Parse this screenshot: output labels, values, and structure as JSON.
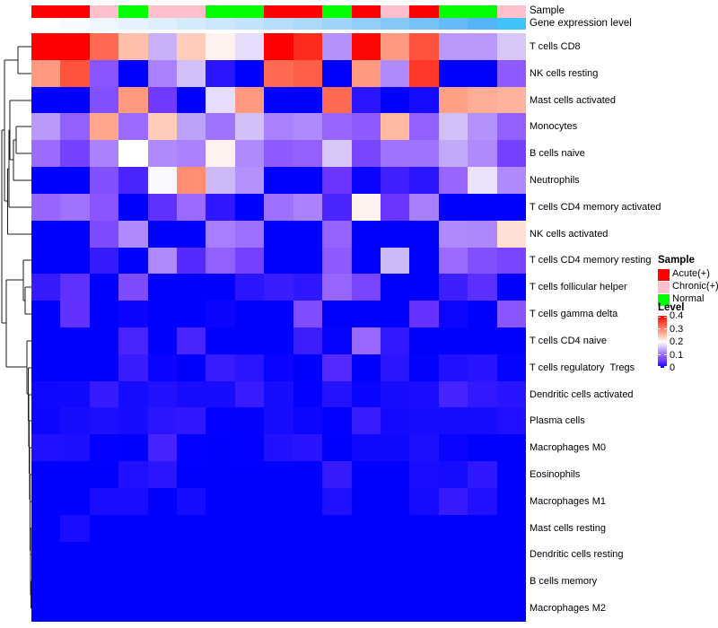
{
  "annotations": {
    "sample_label": "Sample",
    "expression_label": "Gene expression level",
    "sample_by_column": [
      "Acute(+)",
      "Acute(+)",
      "Chronic(+)",
      "Normal",
      "Chronic(+)",
      "Chronic(+)",
      "Normal",
      "Normal",
      "Acute(+)",
      "Acute(+)",
      "Normal",
      "Acute(+)",
      "Chronic(+)",
      "Acute(+)",
      "Normal",
      "Normal",
      "Chronic(+)"
    ],
    "sample_colors": {
      "Acute(+)": "#FF0000",
      "Chronic(+)": "#FFC0CB",
      "Normal": "#00FF00"
    },
    "expression_colors_by_column": [
      "#FFFFFF",
      "#F7FBFF",
      "#EFF7FE",
      "#E6F3FE",
      "#DDEFFD",
      "#D4EBFC",
      "#CBE7FC",
      "#C1E3FB",
      "#B6DEFA",
      "#ABD9FA",
      "#9FD4F9",
      "#92CEF8",
      "#85C8F8",
      "#76C2F7",
      "#66BBF6",
      "#55B4F5",
      "#40C4F8"
    ]
  },
  "chart_data": {
    "type": "heatmap",
    "title": "",
    "n_columns": 17,
    "column_labels_shown": false,
    "rows": [
      "T cells CD8",
      "NK cells resting",
      "Mast cells activated",
      "Monocytes",
      "B cells naive",
      "Neutrophils",
      "T cells CD4 memory activated",
      "NK cells activated",
      "T cells CD4 memory resting",
      "T cells follicular helper",
      "T cells gamma delta",
      "T cells CD4 naive",
      "T cells regulatory  Tregs",
      "Dendritic cells activated",
      "Plasma cells",
      "Macrophages M0",
      "Eosinophils",
      "Macrophages M1",
      "Mast cells resting",
      "Dendritic cells resting",
      "B cells memory",
      "Macrophages M2"
    ],
    "values": [
      [
        0.4,
        0.4,
        0.32,
        0.25,
        0.145,
        0.24,
        0.21,
        0.175,
        0.4,
        0.37,
        0.125,
        0.395,
        0.28,
        0.34,
        0.13,
        0.13,
        0.16
      ],
      [
        0.28,
        0.34,
        0.08,
        0.0,
        0.115,
        0.155,
        0.02,
        0.0,
        0.32,
        0.33,
        0.0,
        0.28,
        0.12,
        0.36,
        0.0,
        0.0,
        0.085
      ],
      [
        0.0,
        0.0,
        0.075,
        0.28,
        0.055,
        0.0,
        0.175,
        0.28,
        0.0,
        0.0,
        0.32,
        0.02,
        0.0,
        0.01,
        0.275,
        0.265,
        0.26
      ],
      [
        0.13,
        0.09,
        0.27,
        0.1,
        0.24,
        0.135,
        0.105,
        0.155,
        0.115,
        0.12,
        0.095,
        0.085,
        0.255,
        0.09,
        0.155,
        0.125,
        0.09
      ],
      [
        0.1,
        0.06,
        0.115,
        0.2,
        0.12,
        0.115,
        0.21,
        0.12,
        0.085,
        0.09,
        0.16,
        0.065,
        0.105,
        0.105,
        0.14,
        0.12,
        0.06
      ],
      [
        0.0,
        0.0,
        0.075,
        0.035,
        0.195,
        0.29,
        0.15,
        0.125,
        0.0,
        0.0,
        0.05,
        0.005,
        0.03,
        0.02,
        0.095,
        0.18,
        0.12
      ],
      [
        0.095,
        0.105,
        0.08,
        0.0,
        0.045,
        0.1,
        0.022,
        0.0,
        0.103,
        0.115,
        0.035,
        0.21,
        0.05,
        0.113,
        0.0,
        0.0,
        0.0
      ],
      [
        0.0,
        0.0,
        0.07,
        0.12,
        0.0,
        0.0,
        0.112,
        0.103,
        0.0,
        0.0,
        0.093,
        0.0,
        0.0,
        0.0,
        0.12,
        0.118,
        0.225
      ],
      [
        0.0,
        0.0,
        0.025,
        0.0,
        0.12,
        0.04,
        0.09,
        0.06,
        0.0,
        0.0,
        0.085,
        0.0,
        0.15,
        0.0,
        0.1,
        0.075,
        0.065
      ],
      [
        0.025,
        0.045,
        0.0,
        0.07,
        0.0,
        0.0,
        0.0,
        0.02,
        0.027,
        0.022,
        0.095,
        0.065,
        0.0,
        0.0,
        0.028,
        0.043,
        0.0
      ],
      [
        0.0,
        0.046,
        0.0,
        0.005,
        0.0,
        0.0,
        0.005,
        0.0,
        0.0,
        0.073,
        0.0,
        0.0,
        0.0,
        0.047,
        0.006,
        0.0,
        0.08
      ],
      [
        0.0,
        0.0,
        0.0,
        0.034,
        0.0,
        0.035,
        0.0,
        0.0,
        0.0,
        0.028,
        0.003,
        0.097,
        0.023,
        0.0,
        0.0,
        0.0,
        0.0
      ],
      [
        0.0,
        0.0,
        0.0,
        0.026,
        0.004,
        0.0,
        0.026,
        0.02,
        0.004,
        0.0,
        0.04,
        0.0,
        0.02,
        0.002,
        0.015,
        0.019,
        0.003
      ],
      [
        0.007,
        0.008,
        0.025,
        0.01,
        0.016,
        0.011,
        0.011,
        0.026,
        0.011,
        0.001,
        0.017,
        0.004,
        0.011,
        0.012,
        0.033,
        0.023,
        0.019
      ],
      [
        0.006,
        0.011,
        0.014,
        0.011,
        0.02,
        0.022,
        0.001,
        0.002,
        0.011,
        0.006,
        0.001,
        0.027,
        0.009,
        0.011,
        0.01,
        0.011,
        0.015
      ],
      [
        0.015,
        0.014,
        0.001,
        0.0,
        0.033,
        0.001,
        0.0,
        0.001,
        0.016,
        0.019,
        0.0,
        0.008,
        0.008,
        0.014,
        0.004,
        0.0,
        0.0
      ],
      [
        0.0,
        0.0,
        0.0,
        0.015,
        0.02,
        0.0,
        0.0,
        0.0,
        0.0,
        0.0,
        0.025,
        0.0,
        0.0,
        0.012,
        0.01,
        0.022,
        0.0
      ],
      [
        0.0,
        0.0,
        0.012,
        0.012,
        0.0,
        0.01,
        0.0,
        0.0,
        0.0,
        0.0,
        0.015,
        0.0,
        0.0,
        0.01,
        0.025,
        0.015,
        0.0
      ],
      [
        0.0,
        0.012,
        0.0,
        0.0,
        0.0,
        0.0,
        0.0,
        0.0,
        0.0,
        0.0,
        0.0,
        0.0,
        0.0,
        0.0,
        0.0,
        0.0,
        0.0
      ],
      [
        0.0,
        0.0,
        0.0,
        0.0,
        0.0,
        0.0,
        0.0,
        0.0,
        0.0,
        0.0,
        0.0,
        0.0,
        0.0,
        0.0,
        0.0,
        0.0,
        0.0
      ],
      [
        0.0,
        0.0,
        0.0,
        0.0,
        0.0,
        0.0,
        0.0,
        0.0,
        0.0,
        0.0,
        0.0,
        0.0,
        0.0,
        0.0,
        0.0,
        0.0,
        0.0
      ],
      [
        0.0,
        0.0,
        0.0,
        0.0,
        0.0,
        0.0,
        0.0,
        0.0,
        0.0,
        0.0,
        0.0,
        0.0,
        0.0,
        0.0,
        0.0,
        0.0,
        0.0
      ]
    ],
    "colormap_anchors": [
      [
        0,
        "#0000FF"
      ],
      [
        0.05,
        "#6B35FF"
      ],
      [
        0.1,
        "#9B6BFF"
      ],
      [
        0.15,
        "#CDB9F8"
      ],
      [
        0.2,
        "#FFFFFF"
      ],
      [
        0.25,
        "#FFBFA9"
      ],
      [
        0.3,
        "#FF8266"
      ],
      [
        0.35,
        "#FF4733"
      ],
      [
        0.4,
        "#FF0000"
      ]
    ],
    "value_range": [
      0,
      0.4
    ],
    "row_dendrogram_segments": [
      [
        20,
        52,
        35,
        52
      ],
      [
        20,
        82,
        35,
        82
      ],
      [
        20,
        52,
        20,
        82
      ],
      [
        5,
        67,
        20,
        67
      ],
      [
        18,
        141,
        35,
        141
      ],
      [
        18,
        171,
        35,
        171
      ],
      [
        18,
        141,
        18,
        171
      ],
      [
        15,
        156,
        18,
        156
      ],
      [
        15,
        201,
        35,
        201
      ],
      [
        15,
        156,
        15,
        201
      ],
      [
        11,
        112,
        35,
        112
      ],
      [
        11,
        178,
        15,
        178
      ],
      [
        11,
        112,
        11,
        178
      ],
      [
        10,
        145,
        11,
        145
      ],
      [
        10,
        231,
        35,
        231
      ],
      [
        10,
        145,
        10,
        231
      ],
      [
        8.5,
        188,
        10,
        188
      ],
      [
        8.5,
        261,
        35,
        261
      ],
      [
        8.5,
        188,
        8.5,
        261
      ],
      [
        5,
        67,
        5,
        224
      ],
      [
        5,
        224,
        8.5,
        224
      ],
      [
        28,
        320,
        35,
        320
      ],
      [
        28,
        350,
        35,
        350
      ],
      [
        28,
        320,
        28,
        350
      ],
      [
        26,
        290,
        35,
        290
      ],
      [
        26,
        335,
        28,
        335
      ],
      [
        26,
        290,
        26,
        335
      ],
      [
        34.5,
        648,
        35,
        648
      ],
      [
        34.5,
        678,
        35,
        678
      ],
      [
        34.5,
        648,
        34.5,
        678
      ],
      [
        34.2,
        618,
        35,
        618
      ],
      [
        34.2,
        663,
        34.5,
        663
      ],
      [
        34.2,
        618,
        34.2,
        663
      ],
      [
        33.9,
        589,
        35,
        589
      ],
      [
        33.9,
        640,
        34.2,
        640
      ],
      [
        33.9,
        589,
        33.9,
        640
      ],
      [
        33.6,
        559,
        35,
        559
      ],
      [
        33.6,
        614,
        33.9,
        614
      ],
      [
        33.6,
        559,
        33.6,
        614
      ],
      [
        33.3,
        529,
        35,
        529
      ],
      [
        33.3,
        586,
        33.6,
        586
      ],
      [
        33.3,
        529,
        33.3,
        586
      ],
      [
        33,
        499,
        35,
        499
      ],
      [
        33,
        557,
        33.3,
        557
      ],
      [
        33,
        499,
        33,
        557
      ],
      [
        32.5,
        469,
        35,
        469
      ],
      [
        32.5,
        528,
        33,
        528
      ],
      [
        32.5,
        469,
        32.5,
        528
      ],
      [
        32,
        440,
        35,
        440
      ],
      [
        32,
        498,
        32.5,
        498
      ],
      [
        32,
        440,
        32,
        498
      ],
      [
        31.5,
        410,
        35,
        410
      ],
      [
        31.5,
        469,
        32,
        469
      ],
      [
        31.5,
        410,
        31.5,
        469
      ],
      [
        30,
        380,
        35,
        380
      ],
      [
        30,
        439,
        31.5,
        439
      ],
      [
        30,
        380,
        30,
        439
      ],
      [
        7,
        312,
        26,
        312
      ],
      [
        7,
        409,
        30,
        409
      ],
      [
        7,
        312,
        7,
        409
      ],
      [
        2,
        145,
        5,
        145
      ],
      [
        2,
        360,
        7,
        360
      ],
      [
        2,
        145,
        2,
        360
      ]
    ]
  },
  "legend": {
    "sample_title": "Sample",
    "sample_items": [
      {
        "label": "Acute(+)",
        "color": "#FF0000"
      },
      {
        "label": "Chronic(+)",
        "color": "#FFC0CB"
      },
      {
        "label": "Normal",
        "color": "#00FF00"
      }
    ],
    "level_title": "Level",
    "level_ticks": [
      "0.4",
      "0.3",
      "0.2",
      "0.1",
      "0"
    ]
  }
}
